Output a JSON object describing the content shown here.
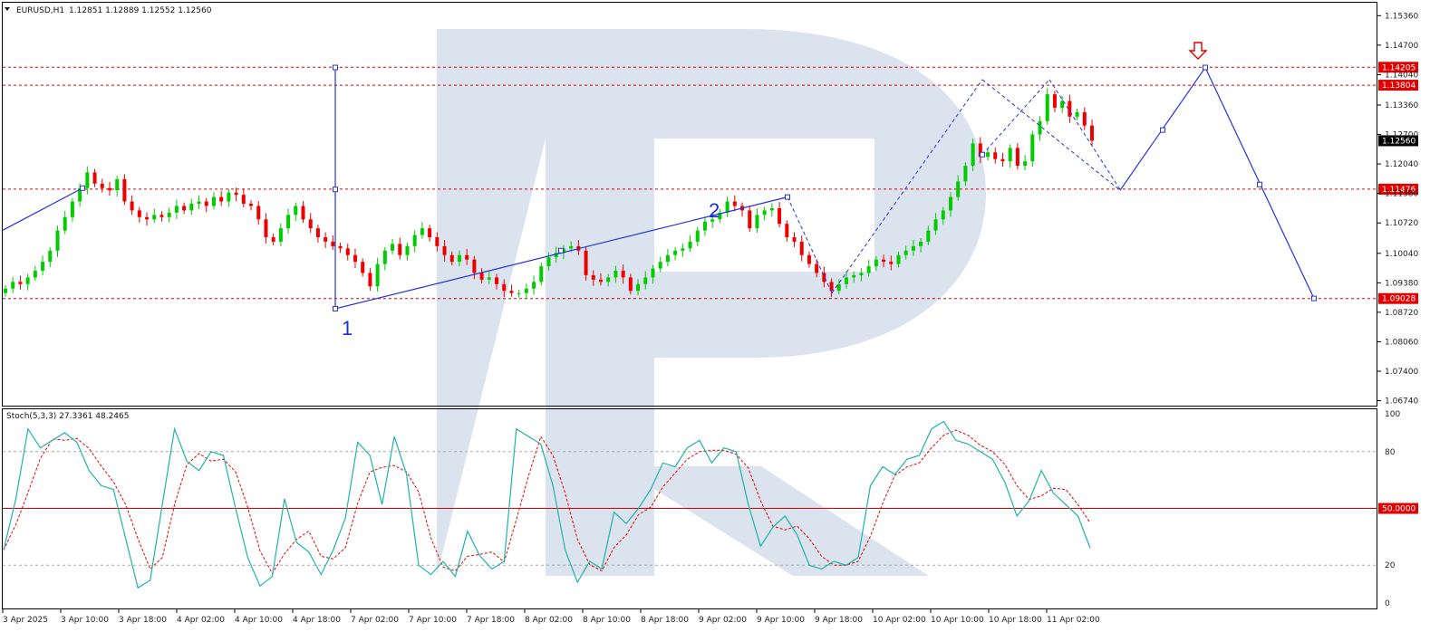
{
  "header": {
    "symbol": "EURUSD,H1",
    "ohlc": "1.12851 1.12889 1.12552 1.12560"
  },
  "oscillator": {
    "label": "Stoch(5,3,3) 27.3361 48.2465",
    "scale": [
      "100",
      "80",
      "20",
      "0"
    ],
    "level_label": "50.0000"
  },
  "price_axis": {
    "ticks": [
      "1.15360",
      "1.14700",
      "1.14040",
      "1.13360",
      "1.12700",
      "1.12040",
      "1.11380",
      "1.10720",
      "1.10040",
      "1.09380",
      "1.08720",
      "1.08060",
      "1.07400",
      "1.06740"
    ],
    "ylim": [
      1.0663,
      1.1565
    ]
  },
  "levels": [
    {
      "value": 1.14205,
      "label": "1.14205",
      "color": "#e00000"
    },
    {
      "value": 1.13804,
      "label": "1.13804",
      "color": "#e00000"
    },
    {
      "value": 1.11476,
      "label": "1.11476",
      "color": "#e00000"
    },
    {
      "value": 1.09028,
      "label": "1.09028",
      "color": "#e00000"
    }
  ],
  "current_price": {
    "value": 1.1256,
    "label": "1.12560"
  },
  "time_axis": [
    "3 Apr 2025",
    "3 Apr 10:00",
    "3 Apr 18:00",
    "4 Apr 02:00",
    "4 Apr 10:00",
    "4 Apr 18:00",
    "7 Apr 02:00",
    "7 Apr 10:00",
    "7 Apr 18:00",
    "8 Apr 02:00",
    "8 Apr 10:00",
    "8 Apr 18:00",
    "9 Apr 02:00",
    "9 Apr 10:00",
    "9 Apr 18:00",
    "10 Apr 02:00",
    "10 Apr 10:00",
    "10 Apr 18:00",
    "11 Apr 02:00"
  ],
  "wave_labels": [
    "1",
    "2"
  ],
  "colors": {
    "bull": "#00cc00",
    "bear": "#ee0000",
    "wave": "#2233dd",
    "stoch_main": "#20b2aa",
    "stoch_signal": "#ee0000",
    "watermark": "#dbe3ee"
  },
  "chart_data": {
    "type": "candlestick",
    "x_index_note": "hourly bars",
    "closes": [
      1.0925,
      1.094,
      1.0935,
      1.095,
      1.0965,
      1.0985,
      1.101,
      1.1055,
      1.1085,
      1.112,
      1.115,
      1.1185,
      1.116,
      1.115,
      1.1145,
      1.117,
      1.112,
      1.11,
      1.1085,
      1.108,
      1.109,
      1.1085,
      1.1095,
      1.111,
      1.11,
      1.1115,
      1.112,
      1.111,
      1.113,
      1.112,
      1.114,
      1.1135,
      1.1115,
      1.111,
      1.108,
      1.104,
      1.103,
      1.106,
      1.109,
      1.111,
      1.108,
      1.106,
      1.104,
      1.103,
      1.102,
      1.1015,
      1.1,
      1.0985,
      1.096,
      1.093,
      1.098,
      1.101,
      1.1025,
      1.1,
      1.102,
      1.1045,
      1.106,
      1.104,
      1.102,
      1.1,
      1.0985,
      1.1,
      1.099,
      1.096,
      1.0945,
      1.095,
      1.0935,
      1.092,
      1.0915,
      1.0915,
      1.0925,
      1.094,
      1.0975,
      1.0995,
      1.1005,
      1.1015,
      1.102,
      1.101,
      1.0955,
      1.0945,
      1.094,
      1.095,
      1.0965,
      1.095,
      1.092,
      1.0935,
      1.095,
      1.097,
      1.0985,
      1.1,
      1.101,
      1.1015,
      1.103,
      1.1055,
      1.1075,
      1.108,
      1.1095,
      1.112,
      1.111,
      1.11,
      1.106,
      1.109,
      1.11,
      1.1105,
      1.107,
      1.104,
      1.103,
      1.1,
      1.098,
      1.096,
      1.094,
      1.092,
      1.0935,
      1.095,
      1.0955,
      1.096,
      1.0975,
      1.099,
      1.0985,
      1.098,
      1.1,
      1.101,
      1.102,
      1.103,
      1.1055,
      1.108,
      1.11,
      1.113,
      1.1165,
      1.12,
      1.125,
      1.122,
      1.123,
      1.1215,
      1.121,
      1.124,
      1.12,
      1.121,
      1.127,
      1.13,
      1.136,
      1.133,
      1.1345,
      1.131,
      1.132,
      1.129,
      1.1256
    ],
    "wave_path": [
      {
        "label": "",
        "value": 1.109
      },
      {
        "label": "1",
        "value": 1.088
      },
      {
        "label": "2",
        "value": 1.113
      },
      {
        "label": "",
        "value": 1.0915
      },
      {
        "label": "",
        "value": 1.1393
      },
      {
        "label": "",
        "value": 1.1145
      },
      {
        "label": "",
        "value": 1.142
      },
      {
        "label": "",
        "value": 1.0903
      }
    ],
    "stoch_main": [
      28,
      55,
      92,
      82,
      86,
      90,
      85,
      70,
      62,
      60,
      34,
      8,
      12,
      52,
      92,
      75,
      70,
      80,
      78,
      50,
      24,
      9,
      14,
      55,
      32,
      27,
      15,
      28,
      45,
      85,
      78,
      52,
      88,
      68,
      20,
      15,
      22,
      14,
      38,
      25,
      18,
      22,
      92,
      88,
      84,
      62,
      28,
      11,
      22,
      18,
      48,
      42,
      50,
      60,
      74,
      72,
      82,
      86,
      74,
      82,
      80,
      52,
      30,
      40,
      46,
      36,
      20,
      18,
      22,
      20,
      24,
      62,
      72,
      68,
      76,
      78,
      92,
      96,
      86,
      84,
      80,
      76,
      64,
      46,
      54,
      70,
      58,
      52,
      46,
      29
    ]
  }
}
